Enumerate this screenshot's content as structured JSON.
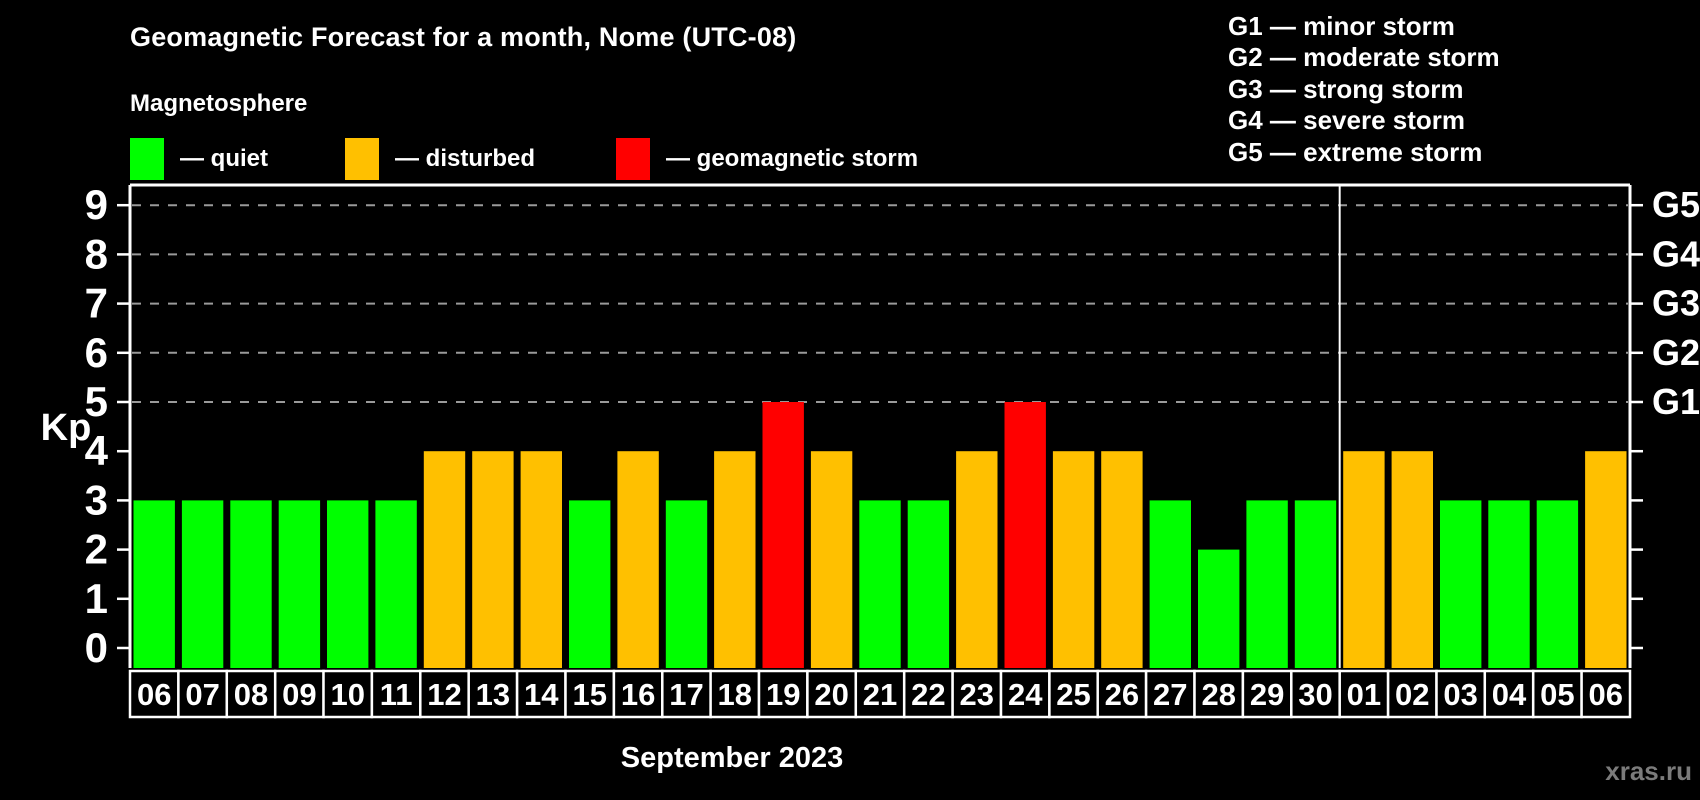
{
  "title": "Geomagnetic Forecast for a month, Nome (UTC-08)",
  "legend": {
    "heading": "Magnetosphere",
    "items": [
      {
        "key": "quiet",
        "label": "— quiet",
        "color": "#00ff00"
      },
      {
        "key": "disturbed",
        "label": "— disturbed",
        "color": "#ffc000"
      },
      {
        "key": "storm",
        "label": "— geomagnetic storm",
        "color": "#ff0000"
      }
    ]
  },
  "g_scale_legend": [
    {
      "level": "G1",
      "name": "minor storm",
      "text": "G1 — minor storm"
    },
    {
      "level": "G2",
      "name": "moderate storm",
      "text": "G2 — moderate storm"
    },
    {
      "level": "G3",
      "name": "strong storm",
      "text": "G3 — strong storm"
    },
    {
      "level": "G4",
      "name": "severe storm",
      "text": "G4 — severe storm"
    },
    {
      "level": "G5",
      "name": "extreme storm",
      "text": "G5 — extreme storm"
    }
  ],
  "watermark": "xras.ru",
  "chart_data": {
    "type": "bar",
    "title": "Geomagnetic Forecast for a month, Nome (UTC-08)",
    "xlabel": "September 2023",
    "ylabel": "Kp",
    "ylim": [
      0,
      9
    ],
    "yticks": [
      0,
      1,
      2,
      3,
      4,
      5,
      6,
      7,
      8,
      9
    ],
    "grid": {
      "horizontal_dashed_at": [
        5,
        6,
        7,
        8,
        9
      ]
    },
    "right_axis": [
      {
        "value": 5,
        "label": "G1"
      },
      {
        "value": 6,
        "label": "G2"
      },
      {
        "value": 7,
        "label": "G3"
      },
      {
        "value": 8,
        "label": "G4"
      },
      {
        "value": 9,
        "label": "G5"
      }
    ],
    "legend_position": "top-left",
    "month_divider_after_index": 24,
    "categories": [
      "06",
      "07",
      "08",
      "09",
      "10",
      "11",
      "12",
      "13",
      "14",
      "15",
      "16",
      "17",
      "18",
      "19",
      "20",
      "21",
      "22",
      "23",
      "24",
      "25",
      "26",
      "27",
      "28",
      "29",
      "30",
      "01",
      "02",
      "03",
      "04",
      "05",
      "06"
    ],
    "values": [
      3,
      3,
      3,
      3,
      3,
      3,
      4,
      4,
      4,
      3,
      4,
      3,
      4,
      5,
      4,
      3,
      3,
      4,
      5,
      4,
      4,
      3,
      2,
      3,
      3,
      4,
      4,
      3,
      3,
      3,
      4
    ],
    "bars": [
      {
        "date": "06",
        "kp": 3,
        "status": "quiet"
      },
      {
        "date": "07",
        "kp": 3,
        "status": "quiet"
      },
      {
        "date": "08",
        "kp": 3,
        "status": "quiet"
      },
      {
        "date": "09",
        "kp": 3,
        "status": "quiet"
      },
      {
        "date": "10",
        "kp": 3,
        "status": "quiet"
      },
      {
        "date": "11",
        "kp": 3,
        "status": "quiet"
      },
      {
        "date": "12",
        "kp": 4,
        "status": "disturbed"
      },
      {
        "date": "13",
        "kp": 4,
        "status": "disturbed"
      },
      {
        "date": "14",
        "kp": 4,
        "status": "disturbed"
      },
      {
        "date": "15",
        "kp": 3,
        "status": "quiet"
      },
      {
        "date": "16",
        "kp": 4,
        "status": "disturbed"
      },
      {
        "date": "17",
        "kp": 3,
        "status": "quiet"
      },
      {
        "date": "18",
        "kp": 4,
        "status": "disturbed"
      },
      {
        "date": "19",
        "kp": 5,
        "status": "storm"
      },
      {
        "date": "20",
        "kp": 4,
        "status": "disturbed"
      },
      {
        "date": "21",
        "kp": 3,
        "status": "quiet"
      },
      {
        "date": "22",
        "kp": 3,
        "status": "quiet"
      },
      {
        "date": "23",
        "kp": 4,
        "status": "disturbed"
      },
      {
        "date": "24",
        "kp": 5,
        "status": "storm"
      },
      {
        "date": "25",
        "kp": 4,
        "status": "disturbed"
      },
      {
        "date": "26",
        "kp": 4,
        "status": "disturbed"
      },
      {
        "date": "27",
        "kp": 3,
        "status": "quiet"
      },
      {
        "date": "28",
        "kp": 2,
        "status": "quiet"
      },
      {
        "date": "29",
        "kp": 3,
        "status": "quiet"
      },
      {
        "date": "30",
        "kp": 3,
        "status": "quiet"
      },
      {
        "date": "01",
        "kp": 4,
        "status": "disturbed"
      },
      {
        "date": "02",
        "kp": 4,
        "status": "disturbed"
      },
      {
        "date": "03",
        "kp": 3,
        "status": "quiet"
      },
      {
        "date": "04",
        "kp": 3,
        "status": "quiet"
      },
      {
        "date": "05",
        "kp": 3,
        "status": "quiet"
      },
      {
        "date": "06",
        "kp": 4,
        "status": "disturbed"
      }
    ],
    "status_colors": {
      "quiet": "#00ff00",
      "disturbed": "#ffc000",
      "storm": "#ff0000"
    },
    "colors": {
      "axis": "#ffffff",
      "grid": "#9a9a9a",
      "tick_label": "#ffffff",
      "date_label": "#ffffff"
    }
  }
}
